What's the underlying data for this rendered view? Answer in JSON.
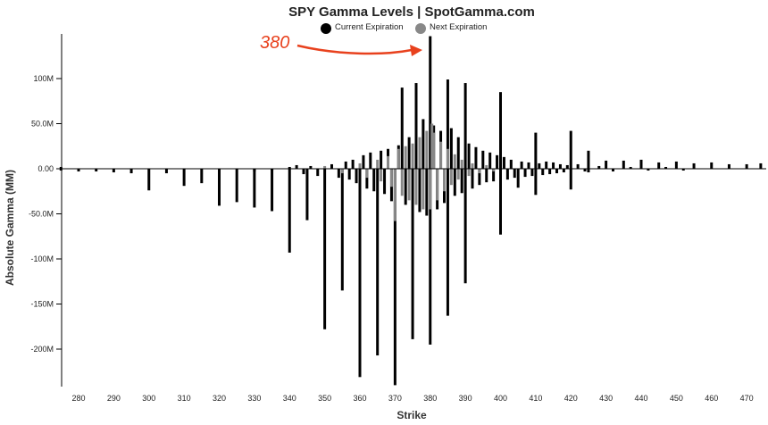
{
  "chart_data": {
    "type": "bar",
    "title": "SPY Gamma Levels | SpotGamma.com",
    "xlabel": "Strike",
    "ylabel": "Absolute Gamma (MM)",
    "xlim": [
      275,
      474
    ],
    "ylim": [
      -240,
      148
    ],
    "x_ticks": [
      280,
      290,
      300,
      310,
      320,
      330,
      340,
      350,
      360,
      370,
      380,
      390,
      400,
      410,
      420,
      430,
      440,
      450,
      460,
      470
    ],
    "y_ticks": [
      100,
      50,
      0,
      -50,
      -100,
      -150,
      -200
    ],
    "y_tick_labels": [
      "100M",
      "50.0M",
      "0.00",
      "-50.0M",
      "-100M",
      "-150M",
      "-200M"
    ],
    "legend": {
      "position": "top-center",
      "items": [
        {
          "label": "Current Expiration",
          "color": "#000000"
        },
        {
          "label": "Next Expiration",
          "color": "#888888"
        }
      ]
    },
    "annotation": {
      "text": "380",
      "color": "#e8411d",
      "points_to_strike": 380
    },
    "series": [
      {
        "color": "#000000",
        "bars": [
          {
            "x": 275,
            "v": 2
          },
          {
            "x": 275,
            "v": -2
          },
          {
            "x": 280,
            "v": -3
          },
          {
            "x": 285,
            "v": -3
          },
          {
            "x": 290,
            "v": -4
          },
          {
            "x": 295,
            "v": -5
          },
          {
            "x": 300,
            "v": -24
          },
          {
            "x": 305,
            "v": -5
          },
          {
            "x": 310,
            "v": -19
          },
          {
            "x": 315,
            "v": -16
          },
          {
            "x": 320,
            "v": -41
          },
          {
            "x": 325,
            "v": -37
          },
          {
            "x": 330,
            "v": -43
          },
          {
            "x": 335,
            "v": -47
          },
          {
            "x": 340,
            "v": -93
          },
          {
            "x": 345,
            "v": -57
          },
          {
            "x": 350,
            "v": -178
          },
          {
            "x": 355,
            "v": -135
          },
          {
            "x": 360,
            "v": -231
          },
          {
            "x": 365,
            "v": -207
          },
          {
            "x": 370,
            "v": -240
          },
          {
            "x": 375,
            "v": -189
          },
          {
            "x": 380,
            "v": -195
          },
          {
            "x": 385,
            "v": -163
          },
          {
            "x": 390,
            "v": -127
          },
          {
            "x": 400,
            "v": -73
          },
          {
            "x": 405,
            "v": -21
          },
          {
            "x": 410,
            "v": -29
          },
          {
            "x": 420,
            "v": -23
          },
          {
            "x": 425,
            "v": -4
          },
          {
            "x": 372,
            "v": 90
          },
          {
            "x": 376,
            "v": 95
          },
          {
            "x": 380,
            "v": 147
          },
          {
            "x": 385,
            "v": 99
          },
          {
            "x": 390,
            "v": 95
          },
          {
            "x": 400,
            "v": 85
          },
          {
            "x": 410,
            "v": 40
          },
          {
            "x": 420,
            "v": 42
          },
          {
            "x": 425,
            "v": 20
          },
          {
            "x": 430,
            "v": 9
          },
          {
            "x": 435,
            "v": 9
          },
          {
            "x": 440,
            "v": 10
          },
          {
            "x": 445,
            "v": 7
          },
          {
            "x": 450,
            "v": 8
          },
          {
            "x": 455,
            "v": 6
          },
          {
            "x": 460,
            "v": 7
          },
          {
            "x": 465,
            "v": 5
          },
          {
            "x": 470,
            "v": 5
          },
          {
            "x": 474,
            "v": 6
          },
          {
            "x": 330,
            "v": -3
          },
          {
            "x": 335,
            "v": -2
          },
          {
            "x": 340,
            "v": 2
          },
          {
            "x": 342,
            "v": 4
          },
          {
            "x": 344,
            "v": -6
          },
          {
            "x": 346,
            "v": 3
          },
          {
            "x": 348,
            "v": -8
          },
          {
            "x": 352,
            "v": 5
          },
          {
            "x": 354,
            "v": -10
          },
          {
            "x": 356,
            "v": 8
          },
          {
            "x": 357,
            "v": -12
          },
          {
            "x": 358,
            "v": 10
          },
          {
            "x": 359,
            "v": -16
          },
          {
            "x": 361,
            "v": 15
          },
          {
            "x": 362,
            "v": -22
          },
          {
            "x": 363,
            "v": 18
          },
          {
            "x": 364,
            "v": -25
          },
          {
            "x": 366,
            "v": 20
          },
          {
            "x": 367,
            "v": -28
          },
          {
            "x": 368,
            "v": 22
          },
          {
            "x": 369,
            "v": -36
          },
          {
            "x": 371,
            "v": 26
          },
          {
            "x": 373,
            "v": -40
          },
          {
            "x": 374,
            "v": 35
          },
          {
            "x": 377,
            "v": -48
          },
          {
            "x": 378,
            "v": 55
          },
          {
            "x": 379,
            "v": -52
          },
          {
            "x": 381,
            "v": 48
          },
          {
            "x": 382,
            "v": -45
          },
          {
            "x": 383,
            "v": 42
          },
          {
            "x": 384,
            "v": -38
          },
          {
            "x": 386,
            "v": 45
          },
          {
            "x": 387,
            "v": -30
          },
          {
            "x": 388,
            "v": 35
          },
          {
            "x": 389,
            "v": -27
          },
          {
            "x": 391,
            "v": 28
          },
          {
            "x": 392,
            "v": -22
          },
          {
            "x": 393,
            "v": 24
          },
          {
            "x": 394,
            "v": -18
          },
          {
            "x": 395,
            "v": 20
          },
          {
            "x": 396,
            "v": -15
          },
          {
            "x": 397,
            "v": 18
          },
          {
            "x": 398,
            "v": -14
          },
          {
            "x": 399,
            "v": 15
          },
          {
            "x": 401,
            "v": 13
          },
          {
            "x": 402,
            "v": -12
          },
          {
            "x": 403,
            "v": 10
          },
          {
            "x": 404,
            "v": -10
          },
          {
            "x": 406,
            "v": 8
          },
          {
            "x": 407,
            "v": -9
          },
          {
            "x": 408,
            "v": 7
          },
          {
            "x": 409,
            "v": -8
          },
          {
            "x": 411,
            "v": 6
          },
          {
            "x": 412,
            "v": -7
          },
          {
            "x": 413,
            "v": 8
          },
          {
            "x": 414,
            "v": -6
          },
          {
            "x": 415,
            "v": 7
          },
          {
            "x": 416,
            "v": -5
          },
          {
            "x": 417,
            "v": 5
          },
          {
            "x": 418,
            "v": -4
          },
          {
            "x": 419,
            "v": 4
          },
          {
            "x": 422,
            "v": 5
          },
          {
            "x": 424,
            "v": -3
          },
          {
            "x": 428,
            "v": 3
          },
          {
            "x": 432,
            "v": -3
          },
          {
            "x": 437,
            "v": 2
          },
          {
            "x": 442,
            "v": -2
          },
          {
            "x": 447,
            "v": 2
          },
          {
            "x": 452,
            "v": -2
          }
        ]
      },
      {
        "color": "#888888",
        "bars": [
          {
            "x": 350,
            "v": 3
          },
          {
            "x": 355,
            "v": -5
          },
          {
            "x": 360,
            "v": 6
          },
          {
            "x": 362,
            "v": -10
          },
          {
            "x": 365,
            "v": 10
          },
          {
            "x": 366,
            "v": -14
          },
          {
            "x": 368,
            "v": 14
          },
          {
            "x": 369,
            "v": -20
          },
          {
            "x": 370,
            "v": -58
          },
          {
            "x": 371,
            "v": 22
          },
          {
            "x": 372,
            "v": -30
          },
          {
            "x": 373,
            "v": 25
          },
          {
            "x": 374,
            "v": -35
          },
          {
            "x": 375,
            "v": 28
          },
          {
            "x": 376,
            "v": -40
          },
          {
            "x": 377,
            "v": 35
          },
          {
            "x": 378,
            "v": -45
          },
          {
            "x": 379,
            "v": 42
          },
          {
            "x": 380,
            "v": -45
          },
          {
            "x": 380.5,
            "v": 50
          },
          {
            "x": 381,
            "v": 40
          },
          {
            "x": 382,
            "v": -35
          },
          {
            "x": 383,
            "v": 30
          },
          {
            "x": 384,
            "v": -25
          },
          {
            "x": 385,
            "v": 22
          },
          {
            "x": 386,
            "v": -18
          },
          {
            "x": 387,
            "v": 16
          },
          {
            "x": 388,
            "v": -12
          },
          {
            "x": 389,
            "v": 10
          },
          {
            "x": 391,
            "v": -8
          },
          {
            "x": 392,
            "v": 6
          },
          {
            "x": 394,
            "v": -5
          },
          {
            "x": 396,
            "v": 4
          },
          {
            "x": 398,
            "v": -3
          }
        ]
      }
    ]
  }
}
